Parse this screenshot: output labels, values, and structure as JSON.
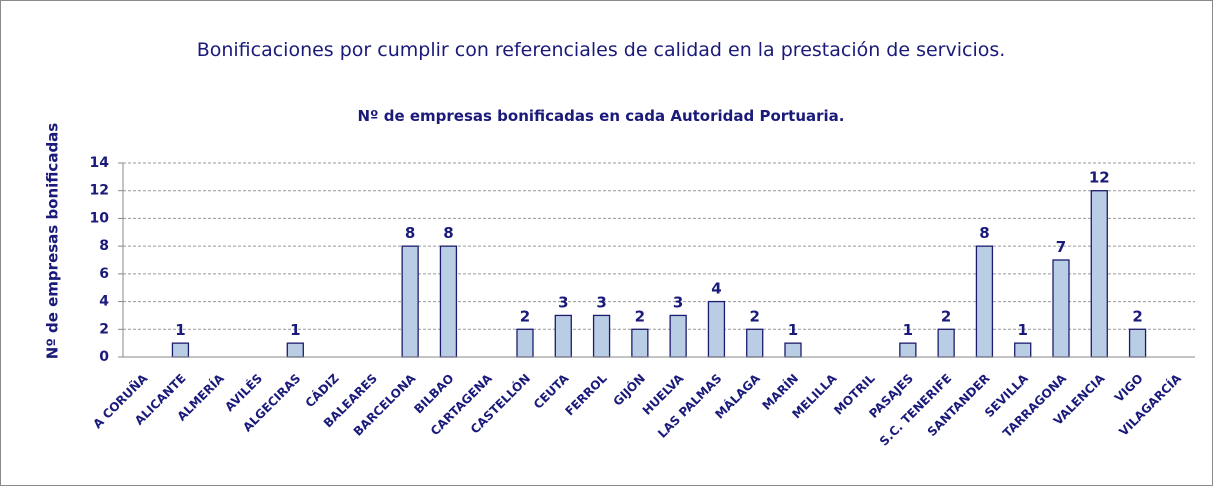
{
  "chart_data": {
    "type": "bar",
    "title": "Bonificaciones por cumplir con referenciales de calidad en la prestación de servicios.",
    "subtitle": "Nº de empresas bonificadas en cada Autoridad Portuaria.",
    "y_label": "Nº de empresas bonificadas",
    "categories": [
      "A CORUÑA",
      "ALICANTE",
      "ALMERÍA",
      "AVILÉS",
      "ALGECIRAS",
      "CÁDIZ",
      "BALEARES",
      "BARCELONA",
      "BILBAO",
      "CARTAGENA",
      "CASTELLÓN",
      "CEUTA",
      "FERROL",
      "GIJÓN",
      "HUELVA",
      "LAS PALMAS",
      "MÁLAGA",
      "MARÍN",
      "MELILLA",
      "MOTRIL",
      "PASAJES",
      "S.C. TENERIFE",
      "SANTANDER",
      "SEVILLA",
      "TARRAGONA",
      "VALENCIA",
      "VIGO",
      "VILAGARCÍA"
    ],
    "values": [
      0,
      1,
      0,
      0,
      1,
      0,
      0,
      8,
      8,
      0,
      2,
      3,
      3,
      2,
      3,
      4,
      2,
      1,
      0,
      0,
      1,
      2,
      8,
      1,
      7,
      12,
      2,
      0
    ],
    "color": "#b9cde5",
    "edge_color": "#1c1c6e",
    "ylim": [
      0,
      14
    ],
    "yticks": [
      0,
      2,
      4,
      6,
      8,
      10,
      12,
      14
    ],
    "grid": true
  }
}
